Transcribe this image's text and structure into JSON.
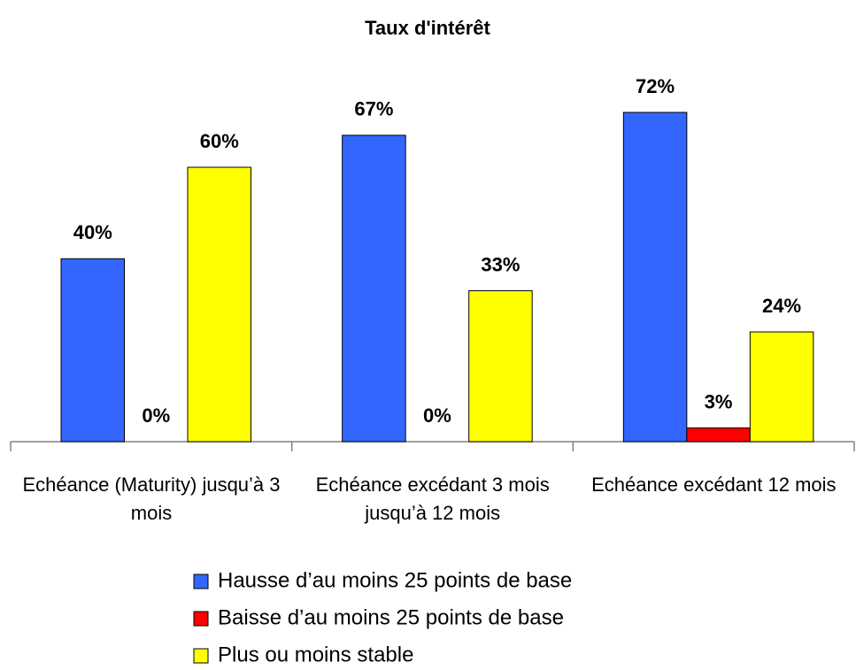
{
  "chart_data": {
    "type": "bar",
    "title": "Taux d'intérêt",
    "categories": [
      "Echéance (Maturity) jusqu’à 3 mois",
      "Echéance excédant 3 mois jusqu’à 12 mois",
      "Echéance excédant 12 mois"
    ],
    "series": [
      {
        "name": "Hausse d’au moins 25 points de base",
        "color": "#3366ff",
        "values": [
          40,
          67,
          72
        ],
        "value_labels": [
          "40%",
          "67%",
          "72%"
        ]
      },
      {
        "name": "Baisse d’au moins 25 points de base",
        "color": "#ff0000",
        "values": [
          0,
          0,
          3
        ],
        "value_labels": [
          "0%",
          "0%",
          "3%"
        ]
      },
      {
        "name": "Plus ou moins stable",
        "color": "#ffff00",
        "values": [
          60,
          33,
          24
        ],
        "value_labels": [
          "60%",
          "33%",
          "24%"
        ]
      }
    ]
  }
}
